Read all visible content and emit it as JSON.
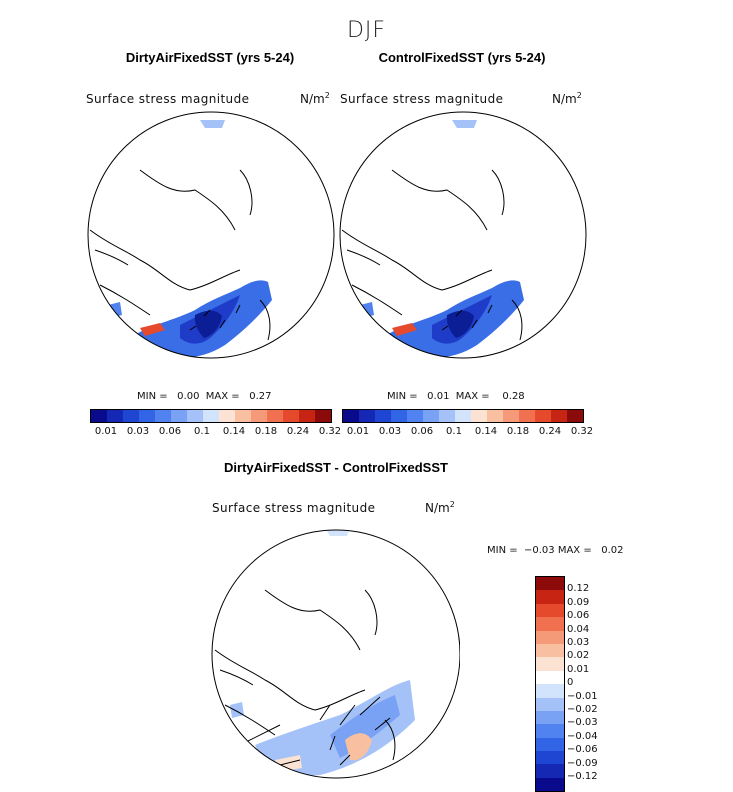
{
  "season": "DJF",
  "panels": [
    {
      "title": "DirtyAirFixedSST (yrs 5-24)",
      "field": "Surface stress magnitude",
      "units": "N/m",
      "units_exp": "2",
      "min_label": "MIN =",
      "min": "0.00",
      "max_label": "MAX =",
      "max": "0.27"
    },
    {
      "title": "ControlFixedSST (yrs 5-24)",
      "field": "Surface stress magnitude",
      "units": "N/m",
      "units_exp": "2",
      "min_label": "MIN =",
      "min": "0.01",
      "max_label": "MAX =",
      "max": "0.28"
    },
    {
      "title": "DirtyAirFixedSST - ControlFixedSST",
      "field": "Surface stress magnitude",
      "units": "N/m",
      "units_exp": "2",
      "min_label": "MIN =",
      "min": "−0.03",
      "max_label": "MAX =",
      "max": "0.02"
    }
  ],
  "colorbar_abs": {
    "colors": [
      "#0a0a8c",
      "#1428b4",
      "#1e46d2",
      "#3264e6",
      "#5082f0",
      "#7aa2f4",
      "#a4c2f8",
      "#d2e4fb",
      "#fbe2d2",
      "#f8c0a0",
      "#f59a78",
      "#f07050",
      "#e64a2c",
      "#c82414",
      "#8c0a0a"
    ],
    "labels": [
      "0.01",
      "0.03",
      "0.06",
      "0.1",
      "0.14",
      "0.18",
      "0.24",
      "0.32"
    ]
  },
  "colorbar_diff": {
    "colors": [
      "#8c0a0a",
      "#c82414",
      "#e64a2c",
      "#f07050",
      "#f59a78",
      "#f8c0a0",
      "#fbe2d2",
      "#ffffff",
      "#d2e4fb",
      "#a4c2f8",
      "#7aa2f4",
      "#5082f0",
      "#3264e6",
      "#1e46d2",
      "#1428b4",
      "#0a0a8c"
    ],
    "labels": [
      "0.12",
      "0.09",
      "0.06",
      "0.04",
      "0.03",
      "0.02",
      "0.01",
      "0",
      "−0.01",
      "−0.02",
      "−0.03",
      "−0.04",
      "−0.06",
      "−0.09",
      "−0.12"
    ]
  },
  "chart_data": [
    {
      "type": "heatmap",
      "title": "DirtyAirFixedSST (yrs 5-24)",
      "field": "Surface stress magnitude",
      "units": "N/m2",
      "min": 0.0,
      "max": 0.27,
      "levels": [
        0.01,
        0.03,
        0.06,
        0.1,
        0.14,
        0.18,
        0.24,
        0.32
      ]
    },
    {
      "type": "heatmap",
      "title": "ControlFixedSST (yrs 5-24)",
      "field": "Surface stress magnitude",
      "units": "N/m2",
      "min": 0.01,
      "max": 0.28,
      "levels": [
        0.01,
        0.03,
        0.06,
        0.1,
        0.14,
        0.18,
        0.24,
        0.32
      ]
    },
    {
      "type": "heatmap",
      "title": "DirtyAirFixedSST - ControlFixedSST",
      "field": "Surface stress magnitude",
      "units": "N/m2",
      "min": -0.03,
      "max": 0.02,
      "levels": [
        -0.12,
        -0.09,
        -0.06,
        -0.04,
        -0.03,
        -0.02,
        -0.01,
        0,
        0.01,
        0.02,
        0.03,
        0.04,
        0.06,
        0.09,
        0.12
      ]
    }
  ]
}
